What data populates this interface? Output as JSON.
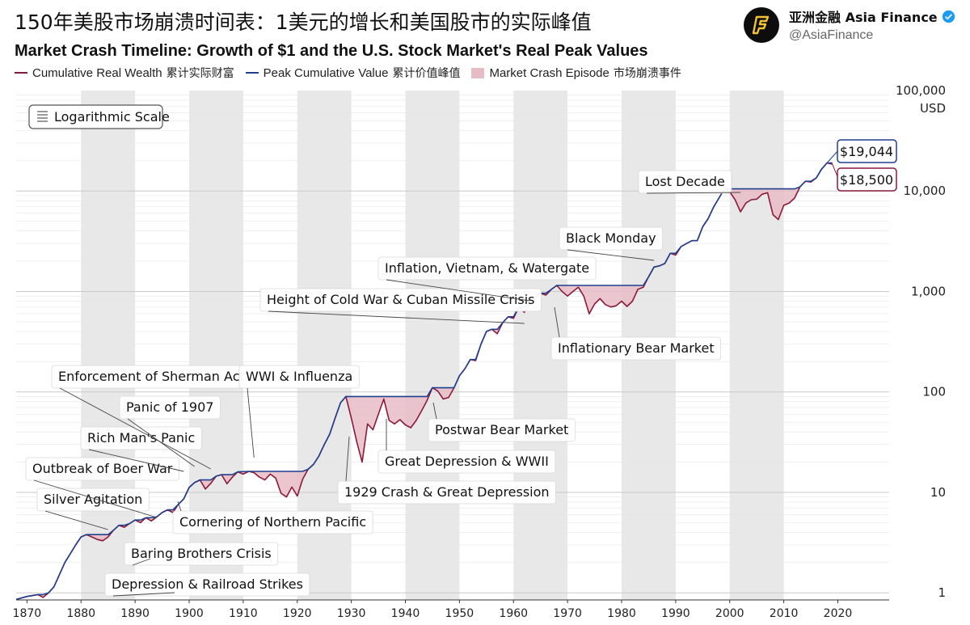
{
  "header": {
    "title_cn": "150年美股市场崩溃时间表：1美元的增长和美国股市的实际峰值",
    "title_en": "Market Crash Timeline: Growth of $1 and the U.S. Stock Market's Real Peak Values"
  },
  "account": {
    "name": "亚洲金融 Asia Finance",
    "handle": "@AsiaFinance",
    "logo": "stylized-F-logo"
  },
  "legend": {
    "cumulative_en": "Cumulative Real Wealth",
    "cumulative_cn": "累计实际财富",
    "peak_en": "Peak Cumulative Value",
    "peak_cn": "累计价值峰值",
    "crash_en": "Market Crash Episode",
    "crash_cn": "市场崩溃事件"
  },
  "colors": {
    "wealth": "#8b1a3a",
    "peak": "#1f3f8f",
    "crash_fill": "#e7bcc6",
    "band": "#e8e8e8",
    "grid": "#d9d9d9"
  },
  "chart_data": {
    "type": "line",
    "title": "Market Crash Timeline: Growth of $1 and the U.S. Stock Market's Real Peak Values",
    "scale_label": "Logarithmic Scale",
    "y_unit": "USD",
    "xlim": [
      1868,
      2028
    ],
    "ylim": [
      0.85,
      100000
    ],
    "x_ticks": [
      1870,
      1880,
      1890,
      1900,
      1910,
      1920,
      1930,
      1940,
      1950,
      1960,
      1970,
      1980,
      1990,
      2000,
      2010,
      2020
    ],
    "y_ticks": [
      1,
      10,
      100,
      1000,
      10000,
      100000
    ],
    "y_tick_labels": [
      "1",
      "10",
      "100",
      "1,000",
      "10,000",
      "100,000"
    ],
    "series": [
      {
        "name": "Cumulative Real Wealth",
        "points": [
          [
            1868,
            0.86
          ],
          [
            1870,
            0.92
          ],
          [
            1872,
            0.96
          ],
          [
            1873,
            0.9
          ],
          [
            1874,
            1.0
          ],
          [
            1875,
            1.15
          ],
          [
            1877,
            2.0
          ],
          [
            1879,
            3.0
          ],
          [
            1880,
            3.6
          ],
          [
            1881,
            3.8
          ],
          [
            1882,
            3.6
          ],
          [
            1883,
            3.4
          ],
          [
            1884,
            3.3
          ],
          [
            1885,
            3.6
          ],
          [
            1886,
            4.2
          ],
          [
            1887,
            4.7
          ],
          [
            1888,
            4.5
          ],
          [
            1889,
            4.9
          ],
          [
            1890,
            5.3
          ],
          [
            1891,
            5.0
          ],
          [
            1892,
            5.6
          ],
          [
            1893,
            5.2
          ],
          [
            1894,
            5.7
          ],
          [
            1895,
            6.3
          ],
          [
            1896,
            6.7
          ],
          [
            1897,
            6.3
          ],
          [
            1898,
            7.6
          ],
          [
            1899,
            8.6
          ],
          [
            1900,
            11.2
          ],
          [
            1901,
            12.5
          ],
          [
            1902,
            13.3
          ],
          [
            1903,
            10.8
          ],
          [
            1904,
            12.3
          ],
          [
            1905,
            14.5
          ],
          [
            1906,
            15.0
          ],
          [
            1907,
            12.2
          ],
          [
            1908,
            14.2
          ],
          [
            1909,
            16.0
          ],
          [
            1910,
            15.2
          ],
          [
            1911,
            16.2
          ],
          [
            1912,
            15.7
          ],
          [
            1913,
            14.2
          ],
          [
            1914,
            13.3
          ],
          [
            1915,
            15.2
          ],
          [
            1916,
            13.9
          ],
          [
            1917,
            9.8
          ],
          [
            1918,
            9.0
          ],
          [
            1919,
            11.3
          ],
          [
            1920,
            9.2
          ],
          [
            1921,
            13.5
          ],
          [
            1922,
            17.0
          ],
          [
            1923,
            19.0
          ],
          [
            1924,
            23.0
          ],
          [
            1925,
            30.0
          ],
          [
            1926,
            38.0
          ],
          [
            1927,
            55.0
          ],
          [
            1928,
            78.0
          ],
          [
            1929,
            90.0
          ],
          [
            1930,
            55.0
          ],
          [
            1931,
            32.0
          ],
          [
            1932,
            20.0
          ],
          [
            1933,
            48.0
          ],
          [
            1934,
            42.0
          ],
          [
            1935,
            60.0
          ],
          [
            1936,
            85.0
          ],
          [
            1937,
            52.0
          ],
          [
            1938,
            48.0
          ],
          [
            1939,
            53.0
          ],
          [
            1940,
            47.0
          ],
          [
            1941,
            44.0
          ],
          [
            1942,
            52.0
          ],
          [
            1943,
            65.0
          ],
          [
            1944,
            82.0
          ],
          [
            1945,
            110.0
          ],
          [
            1946,
            102.0
          ],
          [
            1947,
            85.0
          ],
          [
            1948,
            88.0
          ],
          [
            1949,
            110.0
          ],
          [
            1950,
            145.0
          ],
          [
            1951,
            170.0
          ],
          [
            1952,
            210.0
          ],
          [
            1953,
            205.0
          ],
          [
            1954,
            300.0
          ],
          [
            1955,
            400.0
          ],
          [
            1956,
            420.0
          ],
          [
            1957,
            380.0
          ],
          [
            1958,
            490.0
          ],
          [
            1959,
            560.0
          ],
          [
            1960,
            540.0
          ],
          [
            1961,
            700.0
          ],
          [
            1962,
            620.0
          ],
          [
            1963,
            750.0
          ],
          [
            1964,
            860.0
          ],
          [
            1965,
            960.0
          ],
          [
            1966,
            920.0
          ],
          [
            1967,
            1050.0
          ],
          [
            1968,
            1150.0
          ],
          [
            1969,
            1000.0
          ],
          [
            1970,
            900.0
          ],
          [
            1971,
            1000.0
          ],
          [
            1972,
            1100.0
          ],
          [
            1973,
            900.0
          ],
          [
            1974,
            600.0
          ],
          [
            1975,
            750.0
          ],
          [
            1976,
            850.0
          ],
          [
            1977,
            740.0
          ],
          [
            1978,
            700.0
          ],
          [
            1979,
            720.0
          ],
          [
            1980,
            800.0
          ],
          [
            1981,
            710.0
          ],
          [
            1982,
            800.0
          ],
          [
            1983,
            1050.0
          ],
          [
            1984,
            1100.0
          ],
          [
            1985,
            1400.0
          ],
          [
            1986,
            1750.0
          ],
          [
            1987,
            1800.0
          ],
          [
            1988,
            1900.0
          ],
          [
            1989,
            2400.0
          ],
          [
            1990,
            2300.0
          ],
          [
            1991,
            2800.0
          ],
          [
            1992,
            3000.0
          ],
          [
            1993,
            3200.0
          ],
          [
            1994,
            3200.0
          ],
          [
            1995,
            4400.0
          ],
          [
            1996,
            5300.0
          ],
          [
            1997,
            6900.0
          ],
          [
            1998,
            8500.0
          ],
          [
            1999,
            10500.0
          ],
          [
            2000,
            9800.0
          ],
          [
            2001,
            8200.0
          ],
          [
            2002,
            6200.0
          ],
          [
            2003,
            7600.0
          ],
          [
            2004,
            8200.0
          ],
          [
            2005,
            8300.0
          ],
          [
            2006,
            9300.0
          ],
          [
            2007,
            9600.0
          ],
          [
            2008,
            5800.0
          ],
          [
            2009,
            5200.0
          ],
          [
            2010,
            7200.0
          ],
          [
            2011,
            7600.0
          ],
          [
            2012,
            8500.0
          ],
          [
            2013,
            11000.0
          ],
          [
            2014,
            12500.0
          ],
          [
            2015,
            12300.0
          ],
          [
            2016,
            13500.0
          ],
          [
            2017,
            16500.0
          ],
          [
            2018,
            19044.0
          ],
          [
            2019,
            18500.0
          ]
        ]
      },
      {
        "name": "Peak Cumulative Value",
        "points": [
          [
            1868,
            0.86
          ],
          [
            1870,
            0.92
          ],
          [
            1872,
            0.96
          ],
          [
            1873,
            0.96
          ],
          [
            1874,
            1.0
          ],
          [
            1875,
            1.15
          ],
          [
            1877,
            2.0
          ],
          [
            1879,
            3.0
          ],
          [
            1880,
            3.6
          ],
          [
            1881,
            3.8
          ],
          [
            1883,
            3.8
          ],
          [
            1884,
            3.8
          ],
          [
            1885,
            3.8
          ],
          [
            1886,
            4.2
          ],
          [
            1887,
            4.7
          ],
          [
            1888,
            4.7
          ],
          [
            1889,
            4.9
          ],
          [
            1890,
            5.3
          ],
          [
            1891,
            5.3
          ],
          [
            1892,
            5.6
          ],
          [
            1893,
            5.6
          ],
          [
            1894,
            5.7
          ],
          [
            1895,
            6.3
          ],
          [
            1896,
            6.7
          ],
          [
            1897,
            6.7
          ],
          [
            1898,
            7.6
          ],
          [
            1899,
            8.6
          ],
          [
            1900,
            11.2
          ],
          [
            1901,
            12.5
          ],
          [
            1902,
            13.3
          ],
          [
            1903,
            13.3
          ],
          [
            1904,
            13.3
          ],
          [
            1905,
            14.5
          ],
          [
            1906,
            15.0
          ],
          [
            1907,
            15.0
          ],
          [
            1908,
            15.0
          ],
          [
            1909,
            16.0
          ],
          [
            1911,
            16.2
          ],
          [
            1921,
            16.2
          ],
          [
            1922,
            17.0
          ],
          [
            1923,
            19.0
          ],
          [
            1924,
            23.0
          ],
          [
            1925,
            30.0
          ],
          [
            1926,
            38.0
          ],
          [
            1927,
            55.0
          ],
          [
            1928,
            78.0
          ],
          [
            1929,
            90.0
          ],
          [
            1944,
            90.0
          ],
          [
            1945,
            110.0
          ],
          [
            1949,
            110.0
          ],
          [
            1950,
            145.0
          ],
          [
            1951,
            170.0
          ],
          [
            1952,
            210.0
          ],
          [
            1953,
            210.0
          ],
          [
            1954,
            300.0
          ],
          [
            1955,
            400.0
          ],
          [
            1956,
            420.0
          ],
          [
            1957,
            420.0
          ],
          [
            1958,
            490.0
          ],
          [
            1959,
            560.0
          ],
          [
            1960,
            560.0
          ],
          [
            1961,
            700.0
          ],
          [
            1962,
            700.0
          ],
          [
            1963,
            750.0
          ],
          [
            1964,
            860.0
          ],
          [
            1965,
            960.0
          ],
          [
            1966,
            960.0
          ],
          [
            1967,
            1050.0
          ],
          [
            1968,
            1150.0
          ],
          [
            1984,
            1150.0
          ],
          [
            1985,
            1400.0
          ],
          [
            1986,
            1750.0
          ],
          [
            1987,
            1800.0
          ],
          [
            1988,
            1900.0
          ],
          [
            1989,
            2400.0
          ],
          [
            1990,
            2400.0
          ],
          [
            1991,
            2800.0
          ],
          [
            1992,
            3000.0
          ],
          [
            1993,
            3200.0
          ],
          [
            1994,
            3200.0
          ],
          [
            1995,
            4400.0
          ],
          [
            1996,
            5300.0
          ],
          [
            1997,
            6900.0
          ],
          [
            1998,
            8500.0
          ],
          [
            1999,
            10500.0
          ],
          [
            2012,
            10500.0
          ],
          [
            2013,
            11000.0
          ],
          [
            2014,
            12500.0
          ],
          [
            2015,
            12500.0
          ],
          [
            2016,
            13500.0
          ],
          [
            2017,
            16500.0
          ],
          [
            2018,
            19044.0
          ],
          [
            2019,
            19044.0
          ]
        ]
      }
    ],
    "crash_episodes": [
      {
        "label": "Depression & Railroad Strikes",
        "years": [
          1881,
          1885
        ]
      },
      {
        "label": "Baring Brothers Crisis",
        "years": [
          1890,
          1892
        ]
      },
      {
        "label": "Silver Agitation",
        "years": [
          1892,
          1895
        ]
      },
      {
        "label": "Outbreak of Boer War",
        "years": [
          1896,
          1898
        ]
      },
      {
        "label": "Cornering of Northern Pacific",
        "years": [
          1902,
          1905
        ]
      },
      {
        "label": "Rich Man's Panic",
        "years": [
          1906,
          1909
        ]
      },
      {
        "label": "Panic of 1907",
        "years": [
          1906,
          1909
        ]
      },
      {
        "label": "Enforcement of Sherman Act",
        "years": [
          1909,
          1911
        ]
      },
      {
        "label": "WWI & Influenza",
        "years": [
          1911,
          1921
        ]
      },
      {
        "label": "1929 Crash & Great Depression",
        "years": [
          1929,
          1936
        ]
      },
      {
        "label": "Great Depression & WWII",
        "years": [
          1936,
          1945
        ]
      },
      {
        "label": "Postwar Bear Market",
        "years": [
          1946,
          1950
        ]
      },
      {
        "label": "Height of Cold War & Cuban Missile Crisis",
        "years": [
          1961,
          1963
        ]
      },
      {
        "label": "Inflation, Vietnam, & Watergate",
        "years": [
          1968,
          1984
        ]
      },
      {
        "label": "Inflationary Bear Market",
        "years": [
          1968,
          1984
        ]
      },
      {
        "label": "Black Monday",
        "years": [
          1987,
          1989
        ]
      },
      {
        "label": "Lost Decade",
        "years": [
          2000,
          2013
        ]
      }
    ],
    "annotations": [
      {
        "text": "Depression & Railroad Strikes",
        "year": 1883
      },
      {
        "text": "Baring Brothers Crisis",
        "year": 1890
      },
      {
        "text": "Silver Agitation",
        "year": 1887
      },
      {
        "text": "Outbreak of Boer War",
        "year": 1890
      },
      {
        "text": "Cornering of Northern Pacific",
        "year": 1902
      },
      {
        "text": "Rich Man's Panic",
        "year": 1897
      },
      {
        "text": "Panic of 1907",
        "year": 1900
      },
      {
        "text": "Enforcement of Sherman Act",
        "year": 1903
      },
      {
        "text": "WWI & Influenza",
        "year": 1910
      },
      {
        "text": "1929 Crash & Great Depression",
        "year": 1929
      },
      {
        "text": "Great Depression & WWII",
        "year": 1937
      },
      {
        "text": "Postwar Bear Market",
        "year": 1948
      },
      {
        "text": "Height of Cold War & Cuban Missile Crisis",
        "year": 1955
      },
      {
        "text": "Inflation, Vietnam, & Watergate",
        "year": 1959
      },
      {
        "text": "Inflationary Bear Market",
        "year": 1970
      },
      {
        "text": "Black Monday",
        "year": 1981
      },
      {
        "text": "Lost Decade",
        "year": 1999
      }
    ],
    "callouts": [
      {
        "text": "$19,044",
        "series": "Peak Cumulative Value",
        "value": 19044
      },
      {
        "text": "$18,500",
        "series": "Cumulative Real Wealth",
        "value": 18500
      }
    ]
  }
}
